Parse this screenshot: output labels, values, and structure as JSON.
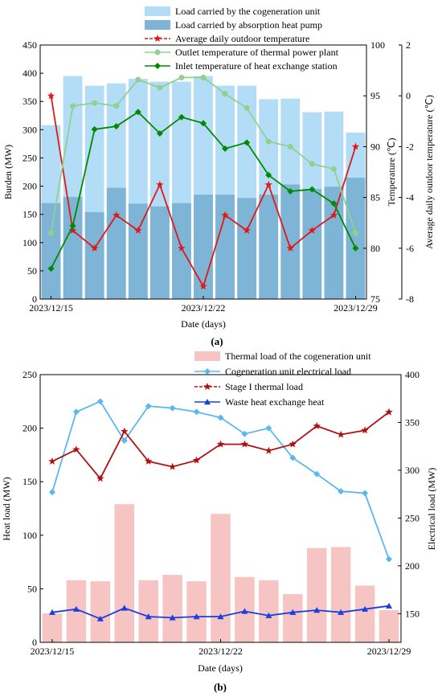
{
  "chart_data": [
    {
      "panel_label": "(a)",
      "type": "bar+line",
      "x": [
        "2023/12/15",
        "2023/12/16",
        "2023/12/17",
        "2023/12/18",
        "2023/12/19",
        "2023/12/20",
        "2023/12/21",
        "2023/12/22",
        "2023/12/23",
        "2023/12/24",
        "2023/12/25",
        "2023/12/26",
        "2023/12/27",
        "2023/12/28",
        "2023/12/29"
      ],
      "xticks": [
        "2023/12/15",
        "2023/12/22",
        "2023/12/29"
      ],
      "xlabel": "Date (days)",
      "ylabel": "Burden (MW)",
      "ylim": [
        0,
        450
      ],
      "yticks": [
        0,
        50,
        100,
        150,
        200,
        250,
        300,
        350,
        400,
        450
      ],
      "ylabel_right1": "Temperature (℃)",
      "ylim_right1": [
        75,
        100
      ],
      "yticks_right1": [
        75,
        80,
        85,
        90,
        95,
        100
      ],
      "ylabel_right2": "Average daily outdoor temperature (℃)",
      "ylim_right2": [
        -8,
        2
      ],
      "yticks_right2": [
        -8,
        -6,
        -4,
        -2,
        0,
        2
      ],
      "legend_position": "top",
      "series": [
        {
          "name": "Load carried by the cogeneration unit",
          "kind": "bar",
          "axis": "left",
          "color": "#b3dcf7",
          "values": [
            308,
            395,
            378,
            382,
            390,
            385,
            385,
            395,
            378,
            378,
            354,
            355,
            331,
            332,
            295
          ]
        },
        {
          "name": "Load carried by absorption heat pump",
          "kind": "bar",
          "axis": "left",
          "color": "#7eb4d6",
          "values": [
            170,
            181,
            154,
            197,
            169,
            164,
            170,
            185,
            185,
            179,
            185,
            203,
            195,
            199,
            215
          ]
        },
        {
          "name": "Average daily outdoor temperature",
          "kind": "line",
          "axis": "right2",
          "color": "#e01818",
          "marker": "star",
          "values": [
            0,
            -5.3,
            -6,
            -4.7,
            -5.3,
            -3.5,
            -6,
            -7.5,
            -4.7,
            -5.3,
            -3.5,
            -6,
            -5.3,
            -4.7,
            -2
          ]
        },
        {
          "name": "Outlet temperature of thermal power plant",
          "kind": "line",
          "axis": "right1",
          "color": "#8fd18f",
          "marker": "circle",
          "values": [
            81.5,
            94,
            94.3,
            94,
            96.6,
            95.8,
            96.8,
            96.8,
            95.2,
            93.8,
            90.5,
            90,
            88.3,
            87.8,
            81.5
          ]
        },
        {
          "name": "Inlet temperature of heat exchange station",
          "kind": "line",
          "axis": "right1",
          "color": "#008a00",
          "marker": "diamond",
          "values": [
            78,
            82.2,
            91.7,
            92,
            93.4,
            91.3,
            92.9,
            92.3,
            89.8,
            90.4,
            87.2,
            85.6,
            85.8,
            84.4,
            80
          ]
        }
      ]
    },
    {
      "panel_label": "(b)",
      "type": "bar+line",
      "x": [
        "2023/12/15",
        "2023/12/16",
        "2023/12/17",
        "2023/12/18",
        "2023/12/19",
        "2023/12/20",
        "2023/12/21",
        "2023/12/22",
        "2023/12/23",
        "2023/12/24",
        "2023/12/25",
        "2023/12/26",
        "2023/12/27",
        "2023/12/28",
        "2023/12/29"
      ],
      "xticks": [
        "2023/12/15",
        "2023/12/22",
        "2023/12/29"
      ],
      "xlabel": "Date (days)",
      "ylabel": "Heat load  (MW)",
      "ylim": [
        0,
        250
      ],
      "yticks": [
        0,
        50,
        100,
        150,
        200,
        250
      ],
      "ylabel_right1": "Electrical load  (MW)",
      "ylim_right1": [
        120,
        400
      ],
      "yticks_right1": [
        150,
        200,
        250,
        300,
        350,
        400
      ],
      "legend_position": "top",
      "series": [
        {
          "name": "Thermal load of the cogeneration unit",
          "kind": "bar",
          "axis": "left",
          "color": "#f7c4c4",
          "values": [
            27,
            58,
            57,
            129,
            58,
            63,
            57,
            120,
            61,
            58,
            45,
            88,
            89,
            53,
            30
          ]
        },
        {
          "name": "Cogeneration unit electrical load",
          "kind": "line",
          "axis": "right1",
          "color": "#5ab8ee",
          "marker": "diamond",
          "values": [
            277,
            361,
            372,
            331,
            367,
            365,
            361,
            355,
            338,
            344,
            313,
            296,
            278,
            276,
            207
          ]
        },
        {
          "name": "Stage I thermal load",
          "kind": "line",
          "axis": "left",
          "color": "#b01010",
          "marker": "star",
          "values": [
            169,
            180,
            153,
            197,
            169,
            164,
            170,
            185,
            185,
            179,
            185,
            202,
            194,
            198,
            215
          ]
        },
        {
          "name": "Waste heat exchange heat",
          "kind": "line",
          "axis": "left",
          "color": "#1a3ee0",
          "marker": "triangle",
          "values": [
            28,
            31,
            22,
            32,
            24,
            23,
            24,
            24,
            29,
            25,
            28,
            30,
            28,
            31,
            34
          ]
        }
      ]
    }
  ]
}
